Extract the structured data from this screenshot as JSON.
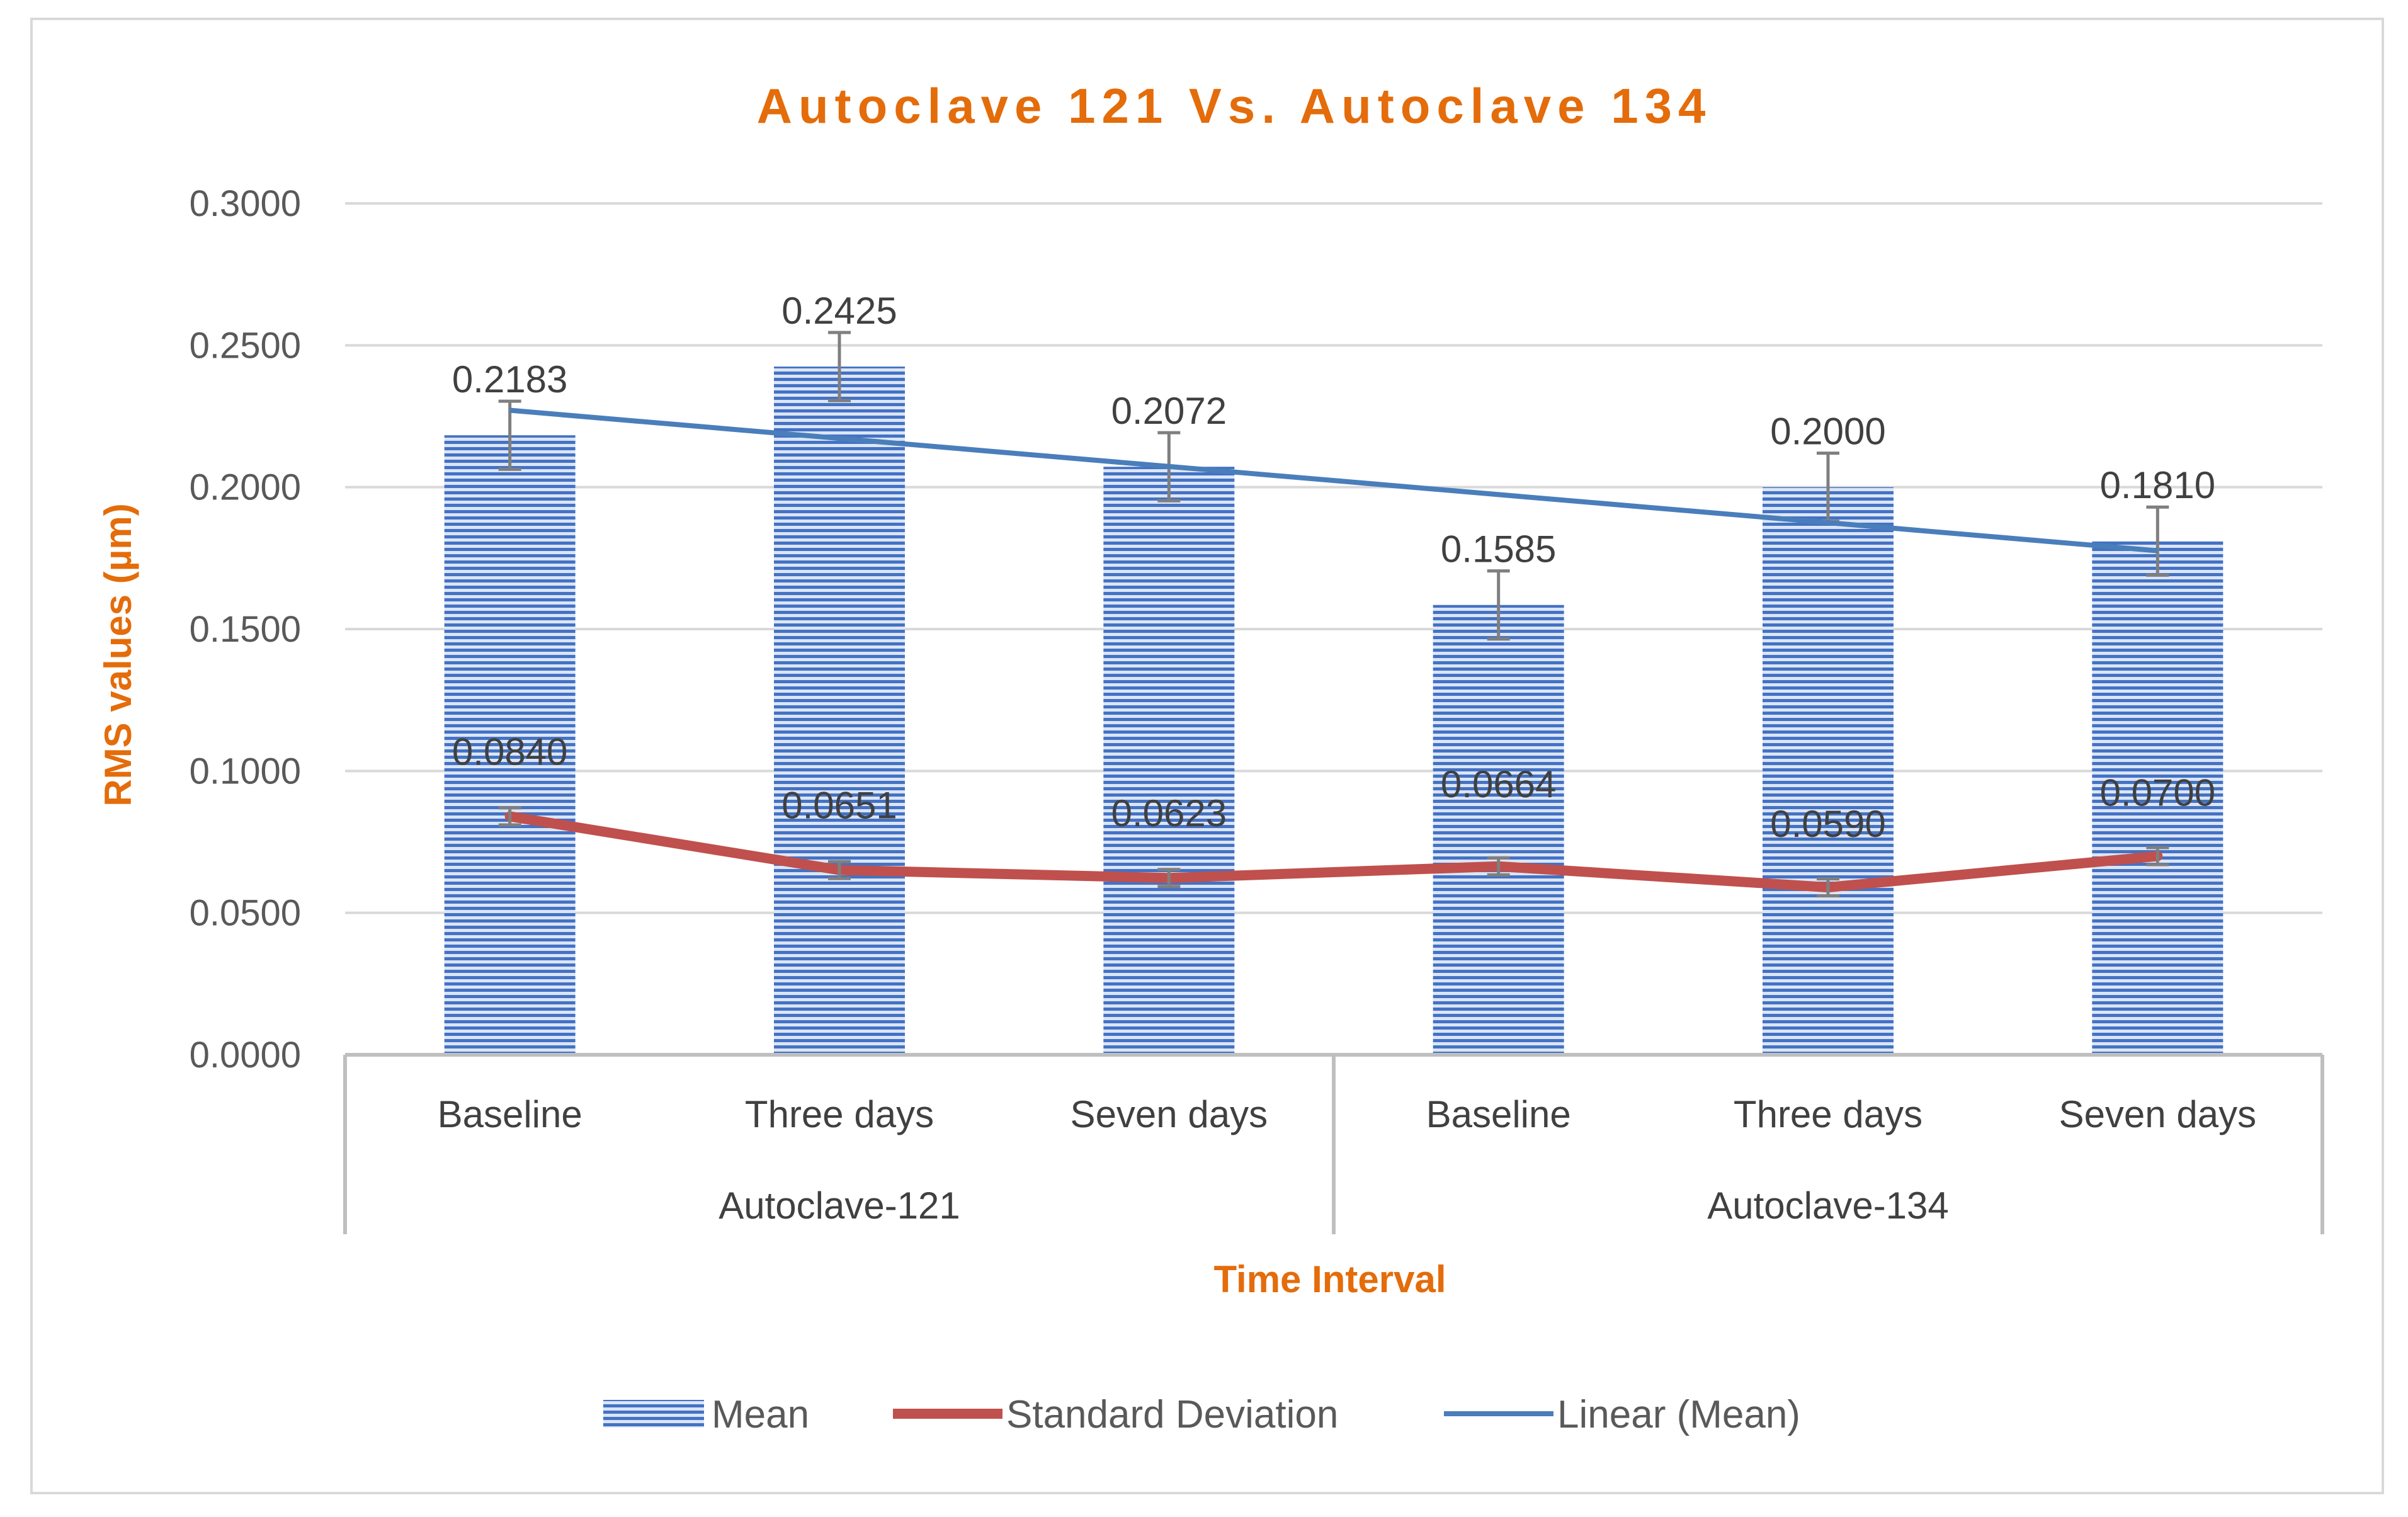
{
  "chart_data": {
    "type": "bar",
    "title": "Autoclave 121 Vs. Autoclave 134",
    "xlabel": "Time Interval",
    "ylabel": "RMS values (µm)",
    "ylim": [
      0,
      0.3
    ],
    "yticks": [
      "0.0000",
      "0.0500",
      "0.1000",
      "0.1500",
      "0.2000",
      "0.2500",
      "0.3000"
    ],
    "grid": true,
    "legend_position": "bottom",
    "categories": [
      "Baseline",
      "Three days",
      "Seven days",
      "Baseline",
      "Three days",
      "Seven days"
    ],
    "groups": [
      {
        "label": "Autoclave-121",
        "count": 3
      },
      {
        "label": "Autoclave-134",
        "count": 3
      }
    ],
    "series": [
      {
        "name": "Mean",
        "kind": "bar",
        "color": "#4472c4",
        "values": [
          0.2183,
          0.2425,
          0.2072,
          0.1585,
          0.2,
          0.181
        ],
        "labels": [
          "0.2183",
          "0.2425",
          "0.2072",
          "0.1585",
          "0.2000",
          "0.1810"
        ],
        "error": [
          0.012,
          0.012,
          0.012,
          0.012,
          0.012,
          0.012
        ]
      },
      {
        "name": "Standard Deviation",
        "kind": "line",
        "color": "#c0504d",
        "values": [
          0.084,
          0.0651,
          0.0623,
          0.0664,
          0.059,
          0.07
        ],
        "labels": [
          "0.0840",
          "0.0651",
          "0.0623",
          "0.0664",
          "0.0590",
          "0.0700"
        ],
        "error": [
          0.003,
          0.003,
          0.003,
          0.003,
          0.003,
          0.003
        ]
      },
      {
        "name": "Linear (Mean)",
        "kind": "trendline",
        "color": "#4a7ebb",
        "values": [
          0.2271,
          0.2172,
          0.2073,
          0.1974,
          0.1875,
          0.1776
        ]
      }
    ]
  }
}
